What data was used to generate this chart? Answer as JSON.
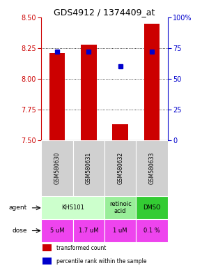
{
  "title": "GDS4912 / 1374409_at",
  "samples": [
    "GSM580630",
    "GSM580631",
    "GSM580632",
    "GSM580633"
  ],
  "bar_values": [
    8.21,
    8.28,
    7.63,
    8.45
  ],
  "bar_base": 7.5,
  "percentile_values": [
    72,
    72,
    60,
    72
  ],
  "percentile_scale_min": 0,
  "percentile_scale_max": 100,
  "ylim_left": [
    7.5,
    8.5
  ],
  "yticks_left": [
    7.5,
    7.75,
    8.0,
    8.25,
    8.5
  ],
  "yticks_right": [
    0,
    25,
    50,
    75,
    100
  ],
  "bar_color": "#cc0000",
  "percentile_color": "#0000cc",
  "agent_groups": [
    {
      "cols": [
        0,
        1
      ],
      "text": "KHS101",
      "color": "#ccffcc"
    },
    {
      "cols": [
        2
      ],
      "text": "retinoic\nacid",
      "color": "#99ee99"
    },
    {
      "cols": [
        3
      ],
      "text": "DMSO",
      "color": "#33cc33"
    }
  ],
  "dose_labels": [
    "5 uM",
    "1.7 uM",
    "1 uM",
    "0.1 %"
  ],
  "dose_color": "#ee44ee",
  "legend_red": "transformed count",
  "legend_blue": "percentile rank within the sample",
  "left_label_color": "#cc0000",
  "right_label_color": "#0000cc"
}
